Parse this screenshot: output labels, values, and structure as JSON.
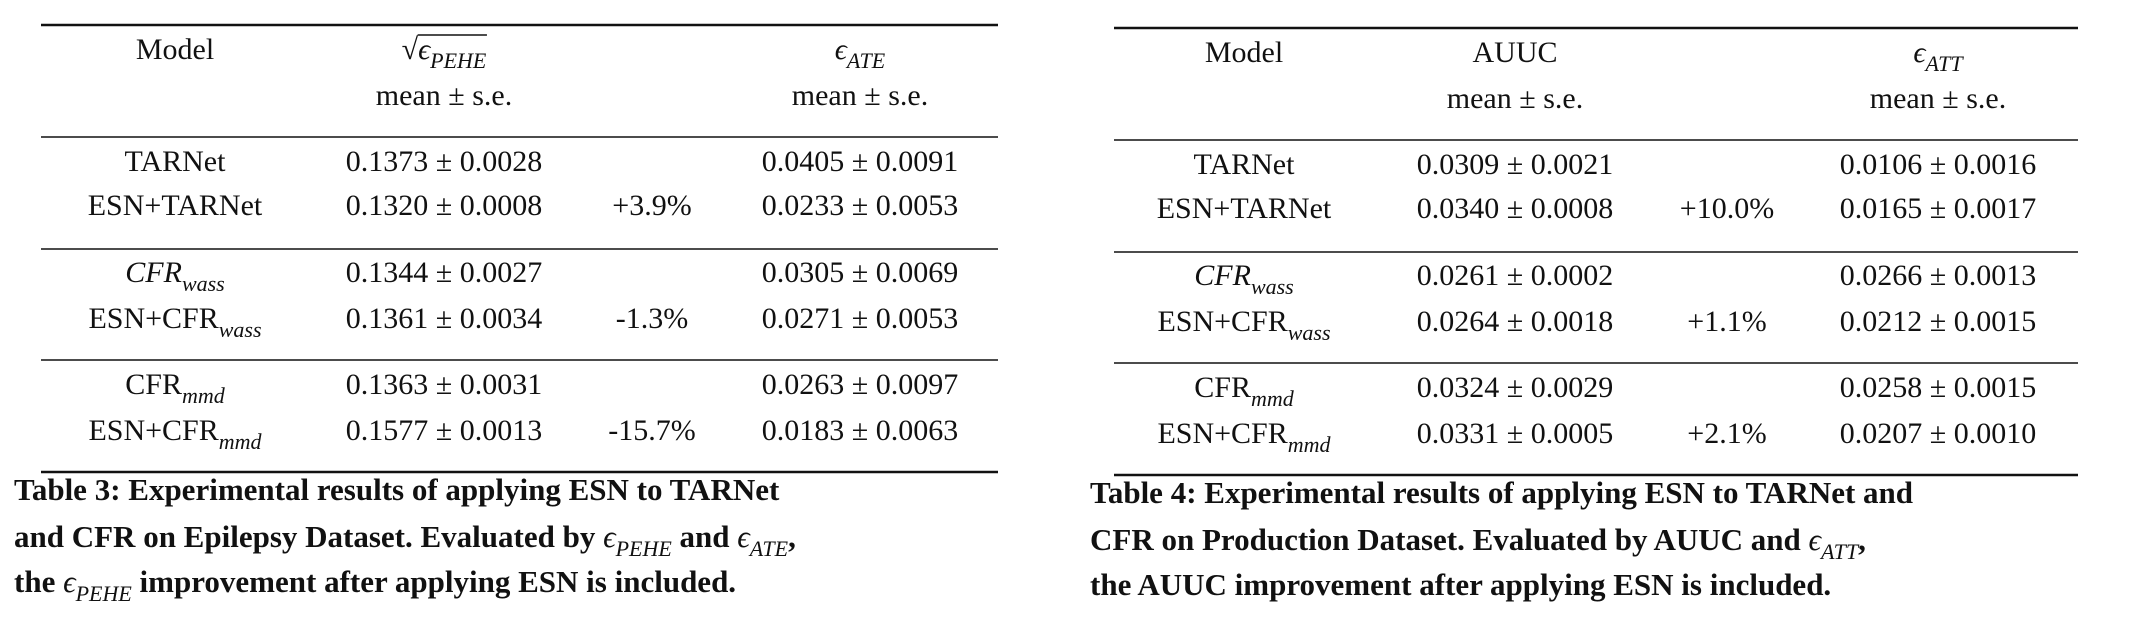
{
  "tables": [
    {
      "header": [
        {
          "top": "Model"
        },
        {
          "top": {
            "radical": "√",
            "base": "ϵ",
            "sub": "PEHE",
            "italic": true
          },
          "bottom": "mean ± s.e."
        },
        {
          "top": {
            "base": "ϵ",
            "sub": "ATE",
            "italic": true
          },
          "bottom": "mean ± s.e."
        }
      ],
      "groups": [
        [
          {
            "model": "TARNet",
            "metric1": "0.1373 ± 0.0028",
            "metric2": "0.0405 ± 0.0091"
          },
          {
            "model": "ESN+TARNet",
            "metric1": "0.1320 ± 0.0008",
            "improvement": "+3.9%",
            "metric2": "0.0233 ± 0.0053"
          }
        ],
        [
          {
            "model": {
              "base": "CFR",
              "sub": "wass",
              "italic": true
            },
            "metric1": "0.1344 ± 0.0027",
            "metric2": "0.0305 ± 0.0069"
          },
          {
            "model": {
              "base": "ESN+CFR",
              "sub": "wass"
            },
            "metric1": "0.1361 ± 0.0034",
            "improvement": "-1.3%",
            "metric2": "0.0271 ± 0.0053"
          }
        ],
        [
          {
            "model": {
              "base": "CFR",
              "sub": "mmd"
            },
            "metric1": "0.1363 ± 0.0031",
            "metric2": "0.0263 ± 0.0097"
          },
          {
            "model": {
              "base": "ESN+CFR",
              "sub": "mmd"
            },
            "metric1": "0.1577 ± 0.0013",
            "improvement": "-15.7%",
            "metric2": "0.0183 ± 0.0063"
          }
        ]
      ],
      "caption": [
        [
          "Table 3: Experimental results of applying ESN to TARNet"
        ],
        [
          "and CFR on Epilepsy Dataset. Evaluated by ",
          {
            "base": "ϵ",
            "sub": "PEHE",
            "italic": true
          },
          " and ",
          {
            "base": "ϵ",
            "sub": "ATE",
            "italic": true
          },
          ","
        ],
        [
          "the ",
          {
            "base": "ϵ",
            "sub": "PEHE",
            "italic": true
          },
          " improvement after applying ESN is included."
        ]
      ]
    },
    {
      "header": [
        {
          "top": "Model"
        },
        {
          "top": "AUUC",
          "bottom": "mean ± s.e."
        },
        {
          "top": {
            "base": "ϵ",
            "sub": "ATT",
            "italic": true
          },
          "bottom": "mean ± s.e."
        }
      ],
      "groups": [
        [
          {
            "model": "TARNet",
            "metric1": "0.0309 ± 0.0021",
            "metric2": "0.0106 ± 0.0016"
          },
          {
            "model": "ESN+TARNet",
            "metric1": "0.0340 ± 0.0008",
            "improvement": "+10.0%",
            "metric2": "0.0165 ± 0.0017"
          }
        ],
        [
          {
            "model": {
              "base": "CFR",
              "sub": "wass",
              "italic": true
            },
            "metric1": "0.0261 ± 0.0002",
            "metric2": "0.0266 ± 0.0013"
          },
          {
            "model": {
              "base": "ESN+CFR",
              "sub": "wass"
            },
            "metric1": "0.0264 ± 0.0018",
            "improvement": "+1.1%",
            "metric2": "0.0212 ± 0.0015"
          }
        ],
        [
          {
            "model": {
              "base": "CFR",
              "sub": "mmd"
            },
            "metric1": "0.0324 ± 0.0029",
            "metric2": "0.0258 ± 0.0015"
          },
          {
            "model": {
              "base": "ESN+CFR",
              "sub": "mmd"
            },
            "metric1": "0.0331 ± 0.0005",
            "improvement": "+2.1%",
            "metric2": "0.0207 ± 0.0010"
          }
        ]
      ],
      "caption": [
        [
          "Table 4: Experimental results of applying ESN to TARNet and"
        ],
        [
          "CFR on Production Dataset. Evaluated by AUUC and ",
          {
            "base": "ϵ",
            "sub": "ATT",
            "italic": true
          },
          ","
        ],
        [
          "the AUUC improvement after applying ESN is included."
        ]
      ]
    }
  ]
}
